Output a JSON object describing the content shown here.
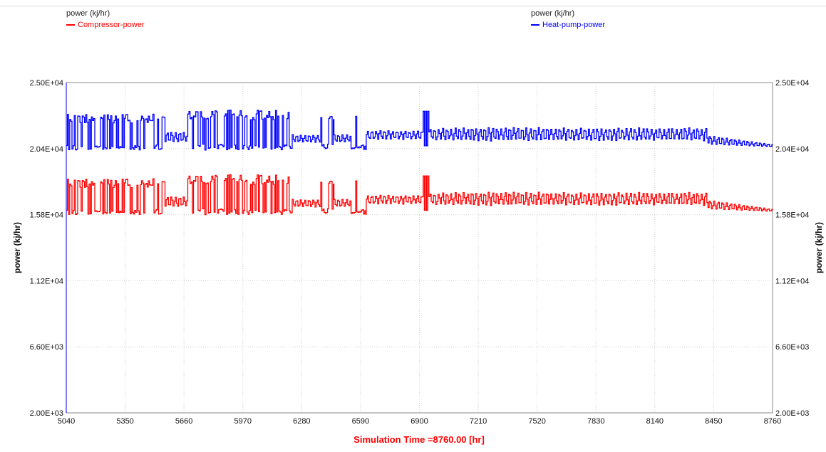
{
  "legend": {
    "left": {
      "unit_title": "power (kj/hr)",
      "series_label": "Compressor-power",
      "color": "#ff0000"
    },
    "right": {
      "unit_title": "power (kj/hr)",
      "series_label": "Heat-pump-power",
      "color": "#0000ff"
    }
  },
  "chart_data": {
    "type": "line",
    "title": "",
    "xlabel": "Simulation Time =8760.00 [hr]",
    "ylabel_left": "power (kj/hr)",
    "ylabel_right": "power (kj/hr)",
    "xlim": [
      5040,
      8760
    ],
    "ylim": [
      2000,
      25000
    ],
    "x_ticks": [
      "5040",
      "5350",
      "5660",
      "5970",
      "6280",
      "6590",
      "6900",
      "7210",
      "7520",
      "7830",
      "8140",
      "8450",
      "8760"
    ],
    "y_ticks": [
      "2.00E+03",
      "6.60E+03",
      "1.12E+04",
      "1.58E+04",
      "2.04E+04",
      "2.50E+04"
    ],
    "grid": true,
    "series": [
      {
        "name": "Heat-pump-power",
        "color": "#0000ff",
        "segments": [
          {
            "from": 5040,
            "to": 5560,
            "low": 20300,
            "high": 22800,
            "mode": "cycling"
          },
          {
            "from": 5560,
            "to": 5680,
            "low": 20800,
            "high": 21600,
            "mode": "ripple"
          },
          {
            "from": 5680,
            "to": 6230,
            "low": 20300,
            "high": 23100,
            "mode": "cycling"
          },
          {
            "from": 6230,
            "to": 6380,
            "low": 20800,
            "high": 21400,
            "mode": "ripple"
          },
          {
            "from": 6380,
            "to": 6450,
            "low": 20300,
            "high": 23100,
            "mode": "cycling"
          },
          {
            "from": 6450,
            "to": 6540,
            "low": 20800,
            "high": 21400,
            "mode": "ripple"
          },
          {
            "from": 6540,
            "to": 6620,
            "low": 20300,
            "high": 23100,
            "mode": "cycling"
          },
          {
            "from": 6620,
            "to": 6920,
            "low": 21000,
            "high": 21700,
            "mode": "ripple"
          },
          {
            "from": 6920,
            "to": 6950,
            "low": 20600,
            "high": 23000,
            "mode": "spike"
          },
          {
            "from": 6950,
            "to": 8420,
            "low": 20900,
            "high": 21900,
            "mode": "ripple"
          },
          {
            "from": 8420,
            "to": 8760,
            "low": 20500,
            "high": 21500,
            "mode": "taper"
          }
        ]
      },
      {
        "name": "Compressor-power",
        "color": "#ff0000",
        "segments": [
          {
            "from": 5040,
            "to": 5560,
            "low": 15800,
            "high": 18300,
            "mode": "cycling"
          },
          {
            "from": 5560,
            "to": 5680,
            "low": 16300,
            "high": 17100,
            "mode": "ripple"
          },
          {
            "from": 5680,
            "to": 6230,
            "low": 15800,
            "high": 18600,
            "mode": "cycling"
          },
          {
            "from": 6230,
            "to": 6380,
            "low": 16300,
            "high": 16900,
            "mode": "ripple"
          },
          {
            "from": 6380,
            "to": 6450,
            "low": 15800,
            "high": 18600,
            "mode": "cycling"
          },
          {
            "from": 6450,
            "to": 6540,
            "low": 16300,
            "high": 16900,
            "mode": "ripple"
          },
          {
            "from": 6540,
            "to": 6620,
            "low": 15800,
            "high": 18600,
            "mode": "cycling"
          },
          {
            "from": 6620,
            "to": 6920,
            "low": 16500,
            "high": 17200,
            "mode": "ripple"
          },
          {
            "from": 6920,
            "to": 6950,
            "low": 16100,
            "high": 18500,
            "mode": "spike"
          },
          {
            "from": 6950,
            "to": 8420,
            "low": 16400,
            "high": 17400,
            "mode": "ripple"
          },
          {
            "from": 8420,
            "to": 8760,
            "low": 16000,
            "high": 17000,
            "mode": "taper"
          }
        ]
      }
    ]
  }
}
